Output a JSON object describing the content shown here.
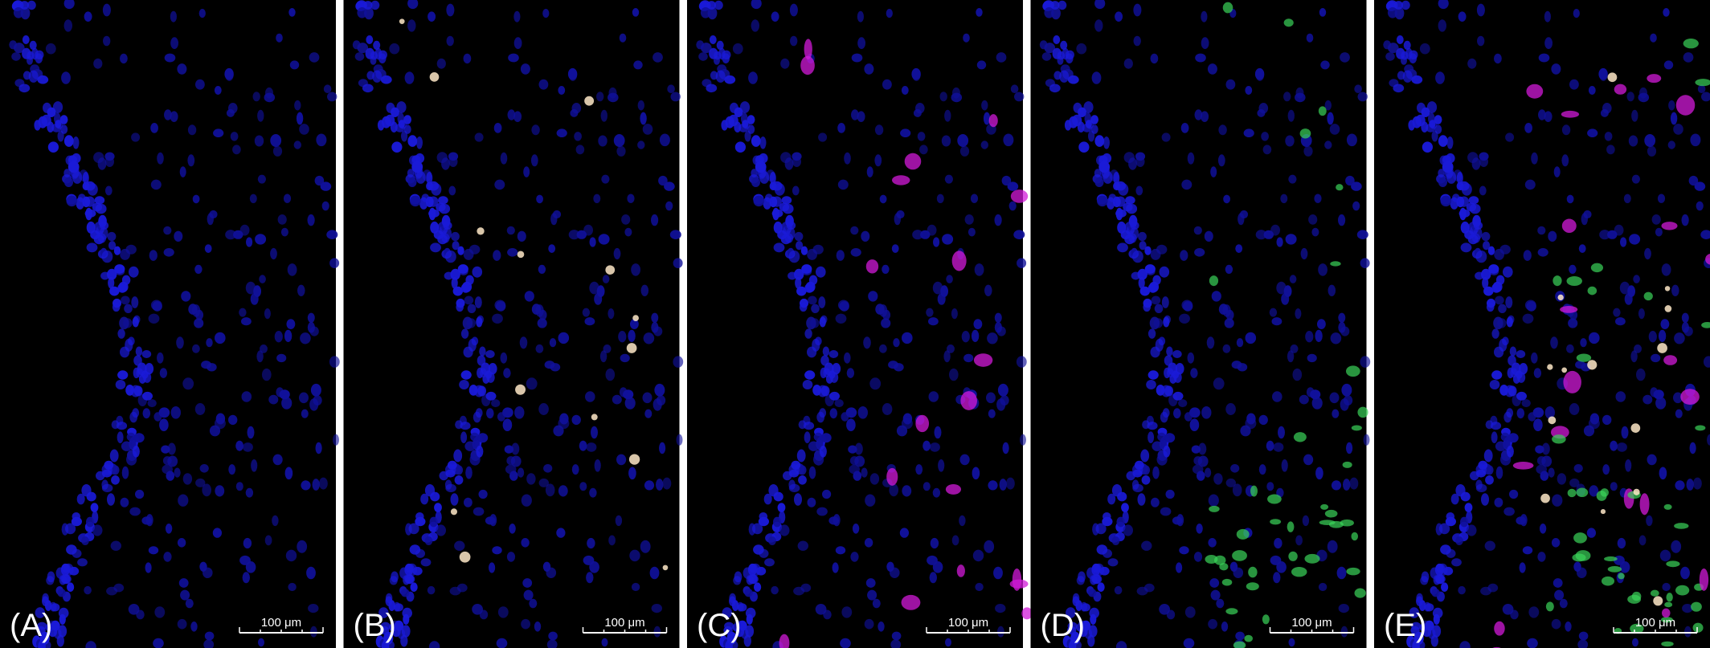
{
  "panels": [
    {
      "label": "(A)",
      "scale_bar": "100 μm"
    },
    {
      "label": "(B)",
      "scale_bar": "100 μm"
    },
    {
      "label": "(C)",
      "scale_bar": "100 μm"
    },
    {
      "label": "(D)",
      "scale_bar": "100 μm"
    },
    {
      "label": "(E)",
      "scale_bar": "100 μm"
    }
  ]
}
